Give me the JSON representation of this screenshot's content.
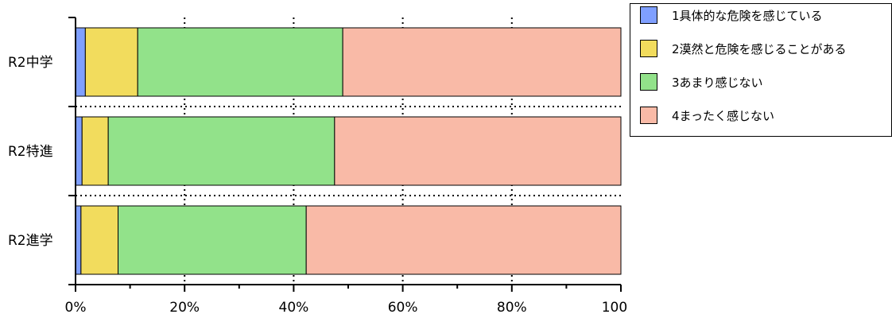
{
  "chart_data": {
    "type": "bar",
    "orientation": "horizontal",
    "stacked": true,
    "percent_scale": true,
    "categories": [
      "R2中学",
      "R2特進",
      "R2進学"
    ],
    "series": [
      {
        "name": "1具体的な危険を感じている",
        "color": "#7F9FFF",
        "values": [
          1.8,
          1.2,
          1.0
        ]
      },
      {
        "name": "2漠然と危険を感じることがある",
        "color": "#F2DC5D",
        "values": [
          9.6,
          4.8,
          6.8
        ]
      },
      {
        "name": "3あまり感じない",
        "color": "#92E28A",
        "values": [
          37.6,
          41.5,
          34.5
        ]
      },
      {
        "name": "4まったく感じない",
        "color": "#F9BAA7",
        "values": [
          51.0,
          52.5,
          57.7
        ]
      }
    ],
    "xlim": [
      0,
      100
    ],
    "xticks": [
      "0%",
      "20%",
      "40%",
      "60%",
      "80%",
      "100%"
    ],
    "xlabel": "",
    "ylabel": "",
    "title": "",
    "grid": "dotted",
    "legend_position": "top-right"
  }
}
